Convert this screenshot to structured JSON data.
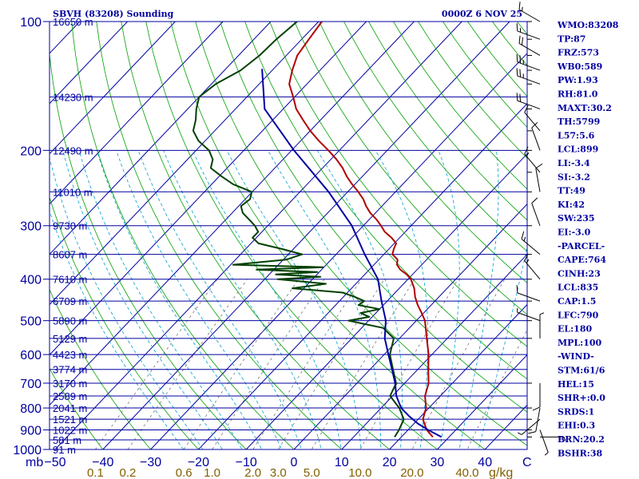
{
  "chart_data": {
    "type": "line",
    "title": "SBVH (83208) Sounding",
    "time_label": "0000Z  6 NOV 25",
    "pressure_unit_label": "mb",
    "temp_unit_label": "C",
    "mixing_unit_label": "g/kg",
    "pressure_range": [
      1000,
      100
    ],
    "temperature_range": [
      -50,
      50
    ],
    "pressure_ticks": [
      {
        "p": 100,
        "label": "100"
      },
      {
        "p": 200,
        "label": "200"
      },
      {
        "p": 300,
        "label": "300"
      },
      {
        "p": 400,
        "label": "400"
      },
      {
        "p": 500,
        "label": "500"
      },
      {
        "p": 600,
        "label": "600"
      },
      {
        "p": 700,
        "label": "700"
      },
      {
        "p": 800,
        "label": "800"
      },
      {
        "p": 900,
        "label": "900"
      },
      {
        "p": 1000,
        "label": "1000"
      }
    ],
    "temp_ticks": [
      {
        "t": -50,
        "label": "-50"
      },
      {
        "t": -40,
        "label": "-40"
      },
      {
        "t": -30,
        "label": "-30"
      },
      {
        "t": -20,
        "label": "-20"
      },
      {
        "t": -10,
        "label": "-10"
      },
      {
        "t": 0,
        "label": "0"
      },
      {
        "t": 10,
        "label": "10"
      },
      {
        "t": 20,
        "label": "20"
      },
      {
        "t": 30,
        "label": "30"
      },
      {
        "t": 40,
        "label": "40"
      }
    ],
    "mixing_ratio_ticks": [
      {
        "w": 0.1,
        "label": "0.1"
      },
      {
        "w": 0.2,
        "label": "0.2"
      },
      {
        "w": 0.6,
        "label": "0.6"
      },
      {
        "w": 1.0,
        "label": "1.0"
      },
      {
        "w": 2.0,
        "label": "2.0"
      },
      {
        "w": 3.0,
        "label": "3.0"
      },
      {
        "w": 5.0,
        "label": "5.0"
      },
      {
        "w": 10.0,
        "label": "10.0"
      },
      {
        "w": 20.0,
        "label": "20.0"
      },
      {
        "w": 40.0,
        "label": "40.0"
      }
    ],
    "height_labels": [
      {
        "p": 100,
        "label": "16650 m"
      },
      {
        "p": 150,
        "label": "14230 m"
      },
      {
        "p": 200,
        "label": "12490 m"
      },
      {
        "p": 250,
        "label": "11010 m"
      },
      {
        "p": 300,
        "label": "9730 m"
      },
      {
        "p": 350,
        "label": "8607 m"
      },
      {
        "p": 400,
        "label": "7610 m"
      },
      {
        "p": 450,
        "label": "6709 m"
      },
      {
        "p": 500,
        "label": "5890 m"
      },
      {
        "p": 550,
        "label": "5129 m"
      },
      {
        "p": 600,
        "label": "4423 m"
      },
      {
        "p": 650,
        "label": "3774 m"
      },
      {
        "p": 700,
        "label": "3170 m"
      },
      {
        "p": 750,
        "label": "2589 m"
      },
      {
        "p": 800,
        "label": "2041 m"
      },
      {
        "p": 850,
        "label": "1521 m"
      },
      {
        "p": 900,
        "label": "1022 m"
      },
      {
        "p": 950,
        "label": "581 m"
      },
      {
        "p": 1000,
        "label": "91 m"
      }
    ],
    "series": [
      {
        "name": "Temperature",
        "color": "#b00000",
        "points": [
          [
            100,
            -79.3
          ],
          [
            110,
            -78.5
          ],
          [
            120,
            -77.7
          ],
          [
            130,
            -75.8
          ],
          [
            140,
            -73.7
          ],
          [
            150,
            -70.3
          ],
          [
            160,
            -67.3
          ],
          [
            170,
            -63.6
          ],
          [
            180,
            -60.0
          ],
          [
            190,
            -56.2
          ],
          [
            200,
            -52.3
          ],
          [
            210,
            -48.8
          ],
          [
            220,
            -45.8
          ],
          [
            230,
            -43.3
          ],
          [
            240,
            -40.6
          ],
          [
            250,
            -37.8
          ],
          [
            260,
            -35.3
          ],
          [
            270,
            -33.3
          ],
          [
            280,
            -31.1
          ],
          [
            290,
            -28.5
          ],
          [
            300,
            -26.3
          ],
          [
            310,
            -24.3
          ],
          [
            320,
            -21.7
          ],
          [
            330,
            -19.6
          ],
          [
            340,
            -19.0
          ],
          [
            350,
            -18.2
          ],
          [
            360,
            -16.1
          ],
          [
            370,
            -15.2
          ],
          [
            380,
            -13.5
          ],
          [
            390,
            -11.2
          ],
          [
            400,
            -9.4
          ],
          [
            420,
            -6.9
          ],
          [
            440,
            -5.0
          ],
          [
            460,
            -2.8
          ],
          [
            480,
            -0.4
          ],
          [
            500,
            1.8
          ],
          [
            550,
            5.7
          ],
          [
            600,
            9.3
          ],
          [
            650,
            12.2
          ],
          [
            700,
            15.0
          ],
          [
            750,
            16.8
          ],
          [
            800,
            19.4
          ],
          [
            850,
            21.0
          ],
          [
            900,
            23.9
          ],
          [
            935,
            26.6
          ]
        ]
      },
      {
        "name": "Dewpoint",
        "color": "#004000",
        "points": [
          [
            100,
            -84.5
          ],
          [
            110,
            -85.3
          ],
          [
            120,
            -85.6
          ],
          [
            130,
            -86.6
          ],
          [
            140,
            -89.1
          ],
          [
            150,
            -90.0
          ],
          [
            160,
            -88.2
          ],
          [
            170,
            -86.1
          ],
          [
            180,
            -84.5
          ],
          [
            190,
            -81.4
          ],
          [
            200,
            -77.3
          ],
          [
            210,
            -74.7
          ],
          [
            220,
            -73.4
          ],
          [
            230,
            -69.5
          ],
          [
            240,
            -65.5
          ],
          [
            250,
            -60.1
          ],
          [
            260,
            -59.0
          ],
          [
            270,
            -59.5
          ],
          [
            280,
            -57.8
          ],
          [
            290,
            -55.2
          ],
          [
            300,
            -52.7
          ],
          [
            310,
            -50.8
          ],
          [
            320,
            -50.8
          ],
          [
            330,
            -48.4
          ],
          [
            340,
            -42.4
          ],
          [
            350,
            -37.1
          ],
          [
            360,
            -39.4
          ],
          [
            370,
            -49.5
          ],
          [
            375,
            -30.2
          ],
          [
            380,
            -43.6
          ],
          [
            385,
            -30.4
          ],
          [
            390,
            -38.6
          ],
          [
            395,
            -28.8
          ],
          [
            400,
            -37.3
          ],
          [
            410,
            -26.3
          ],
          [
            420,
            -32.4
          ],
          [
            430,
            -21.0
          ],
          [
            440,
            -17.6
          ],
          [
            450,
            -14.8
          ],
          [
            460,
            -15.2
          ],
          [
            470,
            -10.0
          ],
          [
            480,
            -13.2
          ],
          [
            490,
            -10.6
          ],
          [
            500,
            -14.2
          ],
          [
            520,
            -5.5
          ],
          [
            550,
            -1.2
          ],
          [
            600,
            1.2
          ],
          [
            650,
            4.8
          ],
          [
            700,
            8.2
          ],
          [
            750,
            9.5
          ],
          [
            800,
            13.8
          ],
          [
            850,
            17.0
          ],
          [
            900,
            18.1
          ],
          [
            935,
            18.6
          ]
        ]
      },
      {
        "name": "Parcel",
        "color": "#0000a0",
        "points": [
          [
            129,
            -82.4
          ],
          [
            160,
            -73.9
          ],
          [
            200,
            -59.5
          ],
          [
            250,
            -44.0
          ],
          [
            300,
            -32.4
          ],
          [
            350,
            -24.0
          ],
          [
            400,
            -16.3
          ],
          [
            450,
            -11.2
          ],
          [
            500,
            -6.4
          ],
          [
            550,
            -3.1
          ],
          [
            600,
            0.9
          ],
          [
            650,
            4.6
          ],
          [
            700,
            8.0
          ],
          [
            750,
            10.8
          ],
          [
            800,
            14.2
          ],
          [
            835,
            17.4
          ],
          [
            870,
            20.8
          ],
          [
            900,
            24.2
          ],
          [
            935,
            28.4
          ]
        ]
      }
    ],
    "wind_barbs": [
      {
        "p": 100,
        "dir": 300,
        "spd": 15
      },
      {
        "p": 110,
        "dir": 290,
        "spd": 15
      },
      {
        "p": 120,
        "dir": 300,
        "spd": 20
      },
      {
        "p": 130,
        "dir": 290,
        "spd": 25
      },
      {
        "p": 140,
        "dir": 290,
        "spd": 25
      },
      {
        "p": 160,
        "dir": 290,
        "spd": 20
      },
      {
        "p": 180,
        "dir": 320,
        "spd": 10
      },
      {
        "p": 200,
        "dir": 340,
        "spd": 10
      },
      {
        "p": 225,
        "dir": 320,
        "spd": 15
      },
      {
        "p": 250,
        "dir": 350,
        "spd": 10
      },
      {
        "p": 300,
        "dir": 340,
        "spd": 10
      },
      {
        "p": 350,
        "dir": 310,
        "spd": 15
      },
      {
        "p": 400,
        "dir": 320,
        "spd": 15
      },
      {
        "p": 450,
        "dir": 290,
        "spd": 10
      },
      {
        "p": 500,
        "dir": 290,
        "spd": 5
      },
      {
        "p": 550,
        "dir": 0,
        "spd": 5
      },
      {
        "p": 700,
        "dir": 180,
        "spd": 10
      },
      {
        "p": 800,
        "dir": 190,
        "spd": 10
      },
      {
        "p": 850,
        "dir": 230,
        "spd": 5
      },
      {
        "p": 900,
        "dir": 160,
        "spd": 5
      },
      {
        "p": 935,
        "dir": 90,
        "spd": 5
      }
    ],
    "indices": [
      {
        "label": "WMO:83208"
      },
      {
        "label": "TP:87"
      },
      {
        "label": "FRZ:573"
      },
      {
        "label": "WB0:589"
      },
      {
        "label": "PW:1.93"
      },
      {
        "label": "RH:81.0"
      },
      {
        "label": "MAXT:30.2"
      },
      {
        "label": "TH:5799"
      },
      {
        "label": "L57:5.6"
      },
      {
        "label": "LCL:899"
      },
      {
        "label": "LI:-3.4"
      },
      {
        "label": "SI:-3.2"
      },
      {
        "label": "TT:49"
      },
      {
        "label": "KI:42"
      },
      {
        "label": "SW:235"
      },
      {
        "label": "EI:-3.0"
      },
      {
        "label": "-PARCEL-"
      },
      {
        "label": "CAPE:764"
      },
      {
        "label": "CINH:23"
      },
      {
        "label": "LCL:835"
      },
      {
        "label": "CAP:1.5"
      },
      {
        "label": "LFC:790"
      },
      {
        "label": "EL:180"
      },
      {
        "label": "MPL:100"
      },
      {
        "label": "-WIND-"
      },
      {
        "label": "STM:61/6"
      },
      {
        "label": "HEL:15"
      },
      {
        "label": "SHR+:0.0"
      },
      {
        "label": "SRDS:1"
      },
      {
        "label": "EHI:0.3"
      },
      {
        "label": "BRN:20.2"
      },
      {
        "label": "BSHR:38"
      }
    ],
    "colors": {
      "isobar": "#0000a0",
      "isotherm": "#0000a0",
      "dry_adiabat": "#00a000",
      "moist_adiabat": "#00a0d0",
      "mixing_ratio": "#606060",
      "axis_text": "#0000a0",
      "mixing_text": "#806000",
      "index_text": "#0000a0",
      "barb": "#000000"
    }
  }
}
